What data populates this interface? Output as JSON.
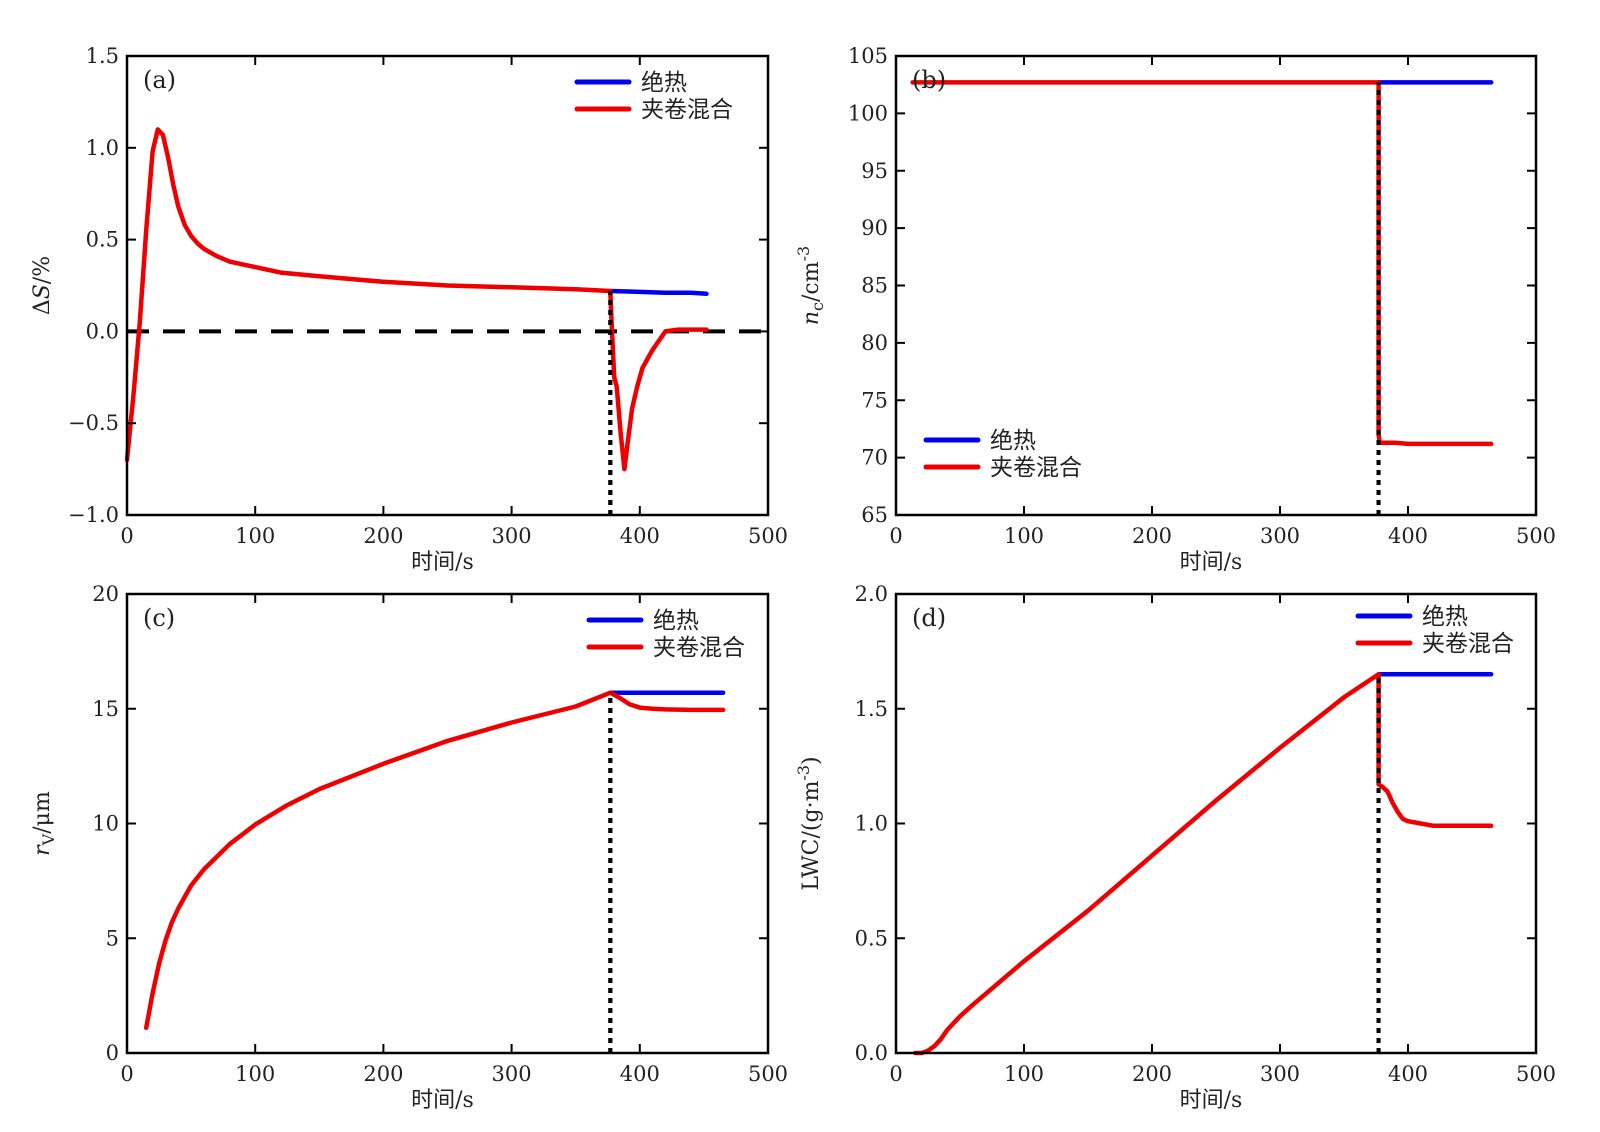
{
  "chart_data": [
    {
      "id": "a",
      "type": "line",
      "panel_label": "(a)",
      "xlabel": "时间/s",
      "ylabel": "ΔS/%",
      "ylabel_italic_part": "S",
      "xlim": [
        0,
        500
      ],
      "ylim": [
        -1.0,
        1.5
      ],
      "xticks": [
        0,
        100,
        200,
        300,
        400,
        500
      ],
      "xtick_labels": [
        "0",
        "100",
        "200",
        "300",
        "400",
        "500"
      ],
      "yticks": [
        -1.0,
        -0.5,
        0.0,
        0.5,
        1.0,
        1.5
      ],
      "ytick_labels": [
        "−1.0",
        "−0.5",
        "0.0",
        "0.5",
        "1.0",
        "1.5"
      ],
      "legend": {
        "position": "top-right",
        "entries": [
          {
            "name": "绝热",
            "color": "#0000ee"
          },
          {
            "name": "夹卷混合",
            "color": "#ee0000"
          }
        ]
      },
      "reference_lines": [
        {
          "orientation": "horizontal",
          "value": 0.0,
          "style": "dashed",
          "color": "#000000"
        },
        {
          "orientation": "vertical",
          "value": 377,
          "style": "dotted",
          "color": "#000000",
          "from": -1.0,
          "to": 0.22
        }
      ],
      "series": [
        {
          "name": "绝热",
          "color": "#0000ee",
          "x": [
            377,
            400,
            420,
            440,
            452
          ],
          "y": [
            0.22,
            0.215,
            0.21,
            0.21,
            0.205
          ]
        },
        {
          "name": "夹卷混合",
          "color": "#ee0000",
          "x": [
            0,
            5,
            10,
            15,
            20,
            24,
            28,
            32,
            36,
            40,
            45,
            50,
            55,
            60,
            70,
            80,
            100,
            120,
            150,
            200,
            250,
            300,
            350,
            377,
            378,
            380,
            382,
            385,
            388,
            391,
            394,
            398,
            402,
            406,
            410,
            415,
            420,
            430,
            440,
            452
          ],
          "y": [
            -0.7,
            -0.35,
            0.05,
            0.55,
            0.98,
            1.1,
            1.07,
            0.95,
            0.8,
            0.68,
            0.58,
            0.52,
            0.48,
            0.45,
            0.41,
            0.38,
            0.35,
            0.32,
            0.3,
            0.27,
            0.25,
            0.24,
            0.23,
            0.22,
            0.05,
            -0.25,
            -0.3,
            -0.55,
            -0.75,
            -0.58,
            -0.42,
            -0.3,
            -0.2,
            -0.15,
            -0.1,
            -0.05,
            0.0,
            0.01,
            0.01,
            0.01
          ]
        }
      ]
    },
    {
      "id": "b",
      "type": "line",
      "panel_label": "(b)",
      "xlabel": "时间/s",
      "ylabel": "nc/cm-3",
      "xlim": [
        0,
        500
      ],
      "ylim": [
        65,
        105
      ],
      "xticks": [
        0,
        100,
        200,
        300,
        400,
        500
      ],
      "xtick_labels": [
        "0",
        "100",
        "200",
        "300",
        "400",
        "500"
      ],
      "yticks": [
        65,
        70,
        75,
        80,
        85,
        90,
        95,
        100,
        105
      ],
      "ytick_labels": [
        "65",
        "70",
        "75",
        "80",
        "85",
        "90",
        "95",
        "100",
        "105"
      ],
      "legend": {
        "position": "bottom-left",
        "entries": [
          {
            "name": "绝热",
            "color": "#0000ee"
          },
          {
            "name": "夹卷混合",
            "color": "#ee0000"
          }
        ]
      },
      "reference_lines": [
        {
          "orientation": "vertical",
          "value": 377,
          "style": "dotted",
          "color": "#000000",
          "from": 65,
          "to": 102.7
        }
      ],
      "series": [
        {
          "name": "绝热",
          "color": "#0000ee",
          "x": [
            377,
            465
          ],
          "y": [
            102.7,
            102.7
          ]
        },
        {
          "name": "夹卷混合",
          "color": "#ee0000",
          "x": [
            13,
            377,
            377,
            378,
            390,
            400,
            465
          ],
          "y": [
            102.7,
            102.7,
            72.0,
            71.3,
            71.3,
            71.2,
            71.2
          ]
        }
      ]
    },
    {
      "id": "c",
      "type": "line",
      "panel_label": "(c)",
      "xlabel": "时间/s",
      "ylabel": "rv/μm",
      "xlim": [
        0,
        500
      ],
      "ylim": [
        0,
        20
      ],
      "xticks": [
        0,
        100,
        200,
        300,
        400,
        500
      ],
      "xtick_labels": [
        "0",
        "100",
        "200",
        "300",
        "400",
        "500"
      ],
      "yticks": [
        0,
        5,
        10,
        15,
        20
      ],
      "ytick_labels": [
        "0",
        "5",
        "10",
        "15",
        "20"
      ],
      "legend": {
        "position": "top-right",
        "entries": [
          {
            "name": "绝热",
            "color": "#0000ee"
          },
          {
            "name": "夹卷混合",
            "color": "#ee0000"
          }
        ]
      },
      "reference_lines": [
        {
          "orientation": "vertical",
          "value": 377,
          "style": "dotted",
          "color": "#000000",
          "from": 0,
          "to": 15.7
        }
      ],
      "series": [
        {
          "name": "绝热",
          "color": "#0000ee",
          "x": [
            377,
            465
          ],
          "y": [
            15.7,
            15.7
          ]
        },
        {
          "name": "夹卷混合",
          "color": "#ee0000",
          "x": [
            15,
            20,
            25,
            30,
            35,
            40,
            50,
            60,
            80,
            100,
            125,
            150,
            200,
            250,
            300,
            350,
            377,
            385,
            392,
            400,
            410,
            420,
            440,
            465
          ],
          "y": [
            1.1,
            2.6,
            3.9,
            4.9,
            5.7,
            6.3,
            7.3,
            8.0,
            9.1,
            9.95,
            10.8,
            11.5,
            12.6,
            13.6,
            14.4,
            15.1,
            15.7,
            15.45,
            15.2,
            15.05,
            15.0,
            14.97,
            14.95,
            14.95
          ]
        }
      ]
    },
    {
      "id": "d",
      "type": "line",
      "panel_label": "(d)",
      "xlabel": "时间/s",
      "ylabel": "LWC/(g·m-3)",
      "xlim": [
        0,
        500
      ],
      "ylim": [
        0.0,
        2.0
      ],
      "xticks": [
        0,
        100,
        200,
        300,
        400,
        500
      ],
      "xtick_labels": [
        "0",
        "100",
        "200",
        "300",
        "400",
        "500"
      ],
      "yticks": [
        0.0,
        0.5,
        1.0,
        1.5,
        2.0
      ],
      "ytick_labels": [
        "0.0",
        "0.5",
        "1.0",
        "1.5",
        "2.0"
      ],
      "legend": {
        "position": "top-right",
        "entries": [
          {
            "name": "绝热",
            "color": "#0000ee"
          },
          {
            "name": "夹卷混合",
            "color": "#ee0000"
          }
        ]
      },
      "reference_lines": [
        {
          "orientation": "vertical",
          "value": 377,
          "style": "dotted",
          "color": "#000000",
          "from": 0.0,
          "to": 1.65
        }
      ],
      "series": [
        {
          "name": "绝热",
          "color": "#0000ee",
          "x": [
            377,
            465
          ],
          "y": [
            1.65,
            1.65
          ]
        },
        {
          "name": "夹卷混合",
          "color": "#ee0000",
          "x": [
            15,
            20,
            25,
            30,
            35,
            40,
            45,
            50,
            60,
            100,
            150,
            200,
            250,
            300,
            350,
            377,
            377,
            380,
            384,
            388,
            392,
            396,
            400,
            410,
            420,
            440,
            465
          ],
          "y": [
            0.0,
            0.0,
            0.01,
            0.03,
            0.06,
            0.1,
            0.13,
            0.16,
            0.21,
            0.4,
            0.62,
            0.86,
            1.1,
            1.33,
            1.55,
            1.65,
            1.17,
            1.16,
            1.14,
            1.09,
            1.05,
            1.02,
            1.01,
            1.0,
            0.99,
            0.99,
            0.99
          ]
        }
      ]
    }
  ]
}
